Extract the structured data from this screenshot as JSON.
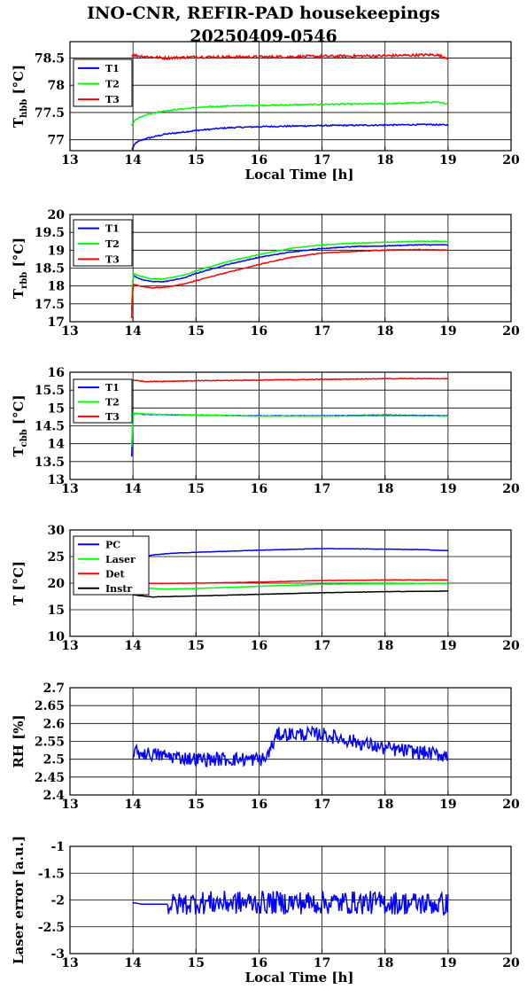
{
  "title": {
    "line1": "INO-CNR, REFIR-PAD housekeepings",
    "line2": "20250409-0546"
  },
  "colors": {
    "blue": "#0000ff",
    "green": "#00ff00",
    "red": "#ff0000",
    "black": "#000000"
  },
  "chart_data": [
    {
      "type": "line",
      "ylabel": "T",
      "ylabel_sub": "hbb",
      "ylabel_unit": "[°C]",
      "xlabel": "Local Time [h]",
      "xlim": [
        13,
        20
      ],
      "ylim": [
        76.8,
        78.8
      ],
      "xticks": [
        "13",
        "14",
        "15",
        "16",
        "17",
        "18",
        "19",
        "20"
      ],
      "yticks": [
        {
          "v": 77,
          "t": "77"
        },
        {
          "v": 77.5,
          "t": "77.5"
        },
        {
          "v": 78,
          "t": "78"
        },
        {
          "v": 78.5,
          "t": "78.5"
        }
      ],
      "grid": true,
      "legend": "top-left",
      "series": [
        {
          "name": "T1",
          "color": "#0000ff",
          "noise": 0.012,
          "points": [
            [
              13.98,
              76.82
            ],
            [
              14.05,
              76.95
            ],
            [
              14.2,
              77.02
            ],
            [
              14.5,
              77.1
            ],
            [
              15.0,
              77.17
            ],
            [
              15.5,
              77.22
            ],
            [
              16.0,
              77.24
            ],
            [
              17.0,
              77.26
            ],
            [
              18.0,
              77.27
            ],
            [
              18.7,
              77.28
            ],
            [
              19.0,
              77.27
            ]
          ]
        },
        {
          "name": "T2",
          "color": "#00ff00",
          "noise": 0.012,
          "points": [
            [
              13.98,
              77.27
            ],
            [
              14.05,
              77.38
            ],
            [
              14.2,
              77.46
            ],
            [
              14.5,
              77.53
            ],
            [
              15.0,
              77.59
            ],
            [
              15.5,
              77.62
            ],
            [
              16.0,
              77.63
            ],
            [
              17.0,
              77.65
            ],
            [
              18.0,
              77.66
            ],
            [
              18.8,
              77.69
            ],
            [
              19.0,
              77.66
            ]
          ]
        },
        {
          "name": "T3",
          "color": "#ff0000",
          "noise": 0.025,
          "points": [
            [
              13.98,
              78.55
            ],
            [
              14.5,
              78.5
            ],
            [
              15.0,
              78.52
            ],
            [
              16.0,
              78.52
            ],
            [
              17.0,
              78.53
            ],
            [
              18.0,
              78.54
            ],
            [
              18.8,
              78.56
            ],
            [
              19.0,
              78.5
            ]
          ]
        }
      ]
    },
    {
      "type": "line",
      "ylabel": "T",
      "ylabel_sub": "rbb",
      "ylabel_unit": "[°C]",
      "xlabel": "",
      "xlim": [
        13,
        20
      ],
      "ylim": [
        17,
        20
      ],
      "xticks": [
        "13",
        "14",
        "15",
        "16",
        "17",
        "18",
        "19",
        "20"
      ],
      "yticks": [
        {
          "v": 17,
          "t": "17"
        },
        {
          "v": 17.5,
          "t": "17.5"
        },
        {
          "v": 18,
          "t": "18"
        },
        {
          "v": 18.5,
          "t": "18.5"
        },
        {
          "v": 19,
          "t": "19"
        },
        {
          "v": 19.5,
          "t": "19.5"
        },
        {
          "v": 20,
          "t": "20"
        }
      ],
      "grid": true,
      "legend": "top-left",
      "series": [
        {
          "name": "T1",
          "color": "#0000ff",
          "noise": 0.01,
          "points": [
            [
              13.98,
              17.3
            ],
            [
              14.0,
              18.3
            ],
            [
              14.1,
              18.2
            ],
            [
              14.3,
              18.12
            ],
            [
              14.5,
              18.12
            ],
            [
              14.8,
              18.22
            ],
            [
              15.0,
              18.35
            ],
            [
              15.5,
              18.6
            ],
            [
              16.0,
              18.8
            ],
            [
              16.5,
              18.95
            ],
            [
              17.0,
              19.05
            ],
            [
              17.5,
              19.1
            ],
            [
              18.0,
              19.12
            ],
            [
              18.5,
              19.15
            ],
            [
              19.0,
              19.15
            ]
          ]
        },
        {
          "name": "T2",
          "color": "#00ff00",
          "noise": 0.01,
          "points": [
            [
              13.98,
              17.4
            ],
            [
              14.0,
              18.35
            ],
            [
              14.1,
              18.28
            ],
            [
              14.3,
              18.2
            ],
            [
              14.5,
              18.2
            ],
            [
              14.8,
              18.3
            ],
            [
              15.0,
              18.42
            ],
            [
              15.5,
              18.68
            ],
            [
              16.0,
              18.88
            ],
            [
              16.5,
              19.05
            ],
            [
              17.0,
              19.15
            ],
            [
              17.5,
              19.2
            ],
            [
              18.0,
              19.22
            ],
            [
              18.5,
              19.25
            ],
            [
              19.0,
              19.25
            ]
          ]
        },
        {
          "name": "T3",
          "color": "#ff0000",
          "noise": 0.01,
          "points": [
            [
              13.98,
              17.1
            ],
            [
              14.0,
              18.05
            ],
            [
              14.1,
              18.0
            ],
            [
              14.3,
              17.95
            ],
            [
              14.5,
              17.96
            ],
            [
              14.8,
              18.05
            ],
            [
              15.0,
              18.15
            ],
            [
              15.5,
              18.38
            ],
            [
              16.0,
              18.6
            ],
            [
              16.5,
              18.8
            ],
            [
              17.0,
              18.92
            ],
            [
              17.5,
              18.97
            ],
            [
              18.0,
              19.0
            ],
            [
              18.5,
              19.02
            ],
            [
              19.0,
              19.0
            ]
          ]
        }
      ]
    },
    {
      "type": "line",
      "ylabel": "T",
      "ylabel_sub": "cbb",
      "ylabel_unit": "[°C]",
      "xlabel": "",
      "xlim": [
        13,
        20
      ],
      "ylim": [
        13,
        16
      ],
      "xticks": [
        "13",
        "14",
        "15",
        "16",
        "17",
        "18",
        "19",
        "20"
      ],
      "yticks": [
        {
          "v": 13,
          "t": "13"
        },
        {
          "v": 13.5,
          "t": "13.5"
        },
        {
          "v": 14,
          "t": "14"
        },
        {
          "v": 14.5,
          "t": "14.5"
        },
        {
          "v": 15,
          "t": "15"
        },
        {
          "v": 15.5,
          "t": "15.5"
        },
        {
          "v": 16,
          "t": "16"
        }
      ],
      "grid": true,
      "legend": "top-left",
      "series": [
        {
          "name": "T1",
          "color": "#0000ff",
          "noise": 0.008,
          "points": [
            [
              13.98,
              13.65
            ],
            [
              14.0,
              14.85
            ],
            [
              14.2,
              14.82
            ],
            [
              15.0,
              14.8
            ],
            [
              16.0,
              14.78
            ],
            [
              17.0,
              14.78
            ],
            [
              18.0,
              14.8
            ],
            [
              19.0,
              14.78
            ]
          ]
        },
        {
          "name": "T2",
          "color": "#00ff00",
          "noise": 0.008,
          "points": [
            [
              13.98,
              13.9
            ],
            [
              14.0,
              14.86
            ],
            [
              14.2,
              14.83
            ],
            [
              15.0,
              14.8
            ],
            [
              16.0,
              14.77
            ],
            [
              17.0,
              14.77
            ],
            [
              18.0,
              14.78
            ],
            [
              19.0,
              14.77
            ]
          ]
        },
        {
          "name": "T3",
          "color": "#ff0000",
          "noise": 0.01,
          "points": [
            [
              14.0,
              15.78
            ],
            [
              14.2,
              15.74
            ],
            [
              15.0,
              15.76
            ],
            [
              16.0,
              15.78
            ],
            [
              17.0,
              15.8
            ],
            [
              18.0,
              15.82
            ],
            [
              19.0,
              15.82
            ]
          ]
        }
      ]
    },
    {
      "type": "line",
      "ylabel": "T [°C]",
      "ylabel_sub": "",
      "ylabel_unit": "",
      "xlabel": "",
      "xlim": [
        13,
        20
      ],
      "ylim": [
        10,
        30
      ],
      "xticks": [
        "13",
        "14",
        "15",
        "16",
        "17",
        "18",
        "19",
        "20"
      ],
      "yticks": [
        {
          "v": 10,
          "t": "10"
        },
        {
          "v": 15,
          "t": "15"
        },
        {
          "v": 20,
          "t": "20"
        },
        {
          "v": 25,
          "t": "25"
        },
        {
          "v": 30,
          "t": "30"
        }
      ],
      "grid": true,
      "legend": "top-left",
      "series": [
        {
          "name": "PC",
          "color": "#0000ff",
          "noise": 0.03,
          "points": [
            [
              14.0,
              24.3
            ],
            [
              14.3,
              25.3
            ],
            [
              14.6,
              25.6
            ],
            [
              15.0,
              25.8
            ],
            [
              16.0,
              26.2
            ],
            [
              17.0,
              26.5
            ],
            [
              18.0,
              26.4
            ],
            [
              18.6,
              26.3
            ],
            [
              19.0,
              26.1
            ]
          ]
        },
        {
          "name": "Laser",
          "color": "#00ff00",
          "noise": 0.03,
          "points": [
            [
              14.0,
              19.2
            ],
            [
              14.5,
              18.9
            ],
            [
              15.0,
              19.0
            ],
            [
              16.0,
              19.4
            ],
            [
              17.0,
              19.8
            ],
            [
              18.0,
              19.9
            ],
            [
              19.0,
              20.0
            ]
          ]
        },
        {
          "name": "Det",
          "color": "#ff0000",
          "noise": 0.03,
          "points": [
            [
              14.0,
              19.9
            ],
            [
              15.0,
              20.0
            ],
            [
              16.0,
              20.2
            ],
            [
              17.0,
              20.5
            ],
            [
              18.0,
              20.6
            ],
            [
              19.0,
              20.6
            ]
          ]
        },
        {
          "name": "Instr",
          "color": "#000000",
          "noise": 0.03,
          "points": [
            [
              14.0,
              17.8
            ],
            [
              14.3,
              17.4
            ],
            [
              15.0,
              17.6
            ],
            [
              16.0,
              17.9
            ],
            [
              17.0,
              18.2
            ],
            [
              18.0,
              18.4
            ],
            [
              19.0,
              18.5
            ]
          ]
        }
      ]
    },
    {
      "type": "line",
      "ylabel": "RH [%]",
      "ylabel_sub": "",
      "ylabel_unit": "",
      "xlabel": "",
      "xlim": [
        13,
        20
      ],
      "ylim": [
        2.4,
        2.7
      ],
      "xticks": [
        "13",
        "14",
        "15",
        "16",
        "17",
        "18",
        "19",
        "20"
      ],
      "yticks": [
        {
          "v": 2.4,
          "t": "2.4"
        },
        {
          "v": 2.45,
          "t": "2.45"
        },
        {
          "v": 2.5,
          "t": "2.5"
        },
        {
          "v": 2.55,
          "t": "2.55"
        },
        {
          "v": 2.6,
          "t": "2.6"
        },
        {
          "v": 2.65,
          "t": "2.65"
        },
        {
          "v": 2.7,
          "t": "2.7"
        }
      ],
      "grid": true,
      "legend": "none",
      "series": [
        {
          "name": "",
          "color": "#0000ff",
          "noise": 0.02,
          "points": [
            [
              14.0,
              2.52
            ],
            [
              15.0,
              2.5
            ],
            [
              16.0,
              2.5
            ],
            [
              16.1,
              2.5
            ],
            [
              16.3,
              2.57
            ],
            [
              17.0,
              2.57
            ],
            [
              17.5,
              2.55
            ],
            [
              18.0,
              2.53
            ],
            [
              19.0,
              2.51
            ]
          ]
        }
      ]
    },
    {
      "type": "line",
      "ylabel": "Laser error [a.u.]",
      "ylabel_sub": "",
      "ylabel_unit": "",
      "xlabel": "Local Time [h]",
      "xlim": [
        13,
        20
      ],
      "ylim": [
        -3,
        -1
      ],
      "xticks": [
        "13",
        "14",
        "15",
        "16",
        "17",
        "18",
        "19",
        "20"
      ],
      "yticks": [
        {
          "v": -3,
          "t": "-3"
        },
        {
          "v": -2.5,
          "t": "-2.5"
        },
        {
          "v": -2,
          "t": "-2"
        },
        {
          "v": -1.5,
          "t": "-1.5"
        },
        {
          "v": -1,
          "t": "-1"
        }
      ],
      "grid": true,
      "legend": "none",
      "series": [
        {
          "name": "",
          "color": "#0000ff",
          "noise": 0.0,
          "points": [
            [
              14.0,
              -2.05
            ],
            [
              14.15,
              -2.08
            ],
            [
              14.55,
              -2.08
            ]
          ]
        },
        {
          "name": "",
          "color": "#0000ff",
          "noise": 0.22,
          "points": [
            [
              14.55,
              -2.1
            ],
            [
              15.0,
              -2.05
            ],
            [
              16.0,
              -2.05
            ],
            [
              17.0,
              -2.05
            ],
            [
              18.0,
              -2.05
            ],
            [
              19.0,
              -2.08
            ]
          ]
        }
      ]
    }
  ]
}
